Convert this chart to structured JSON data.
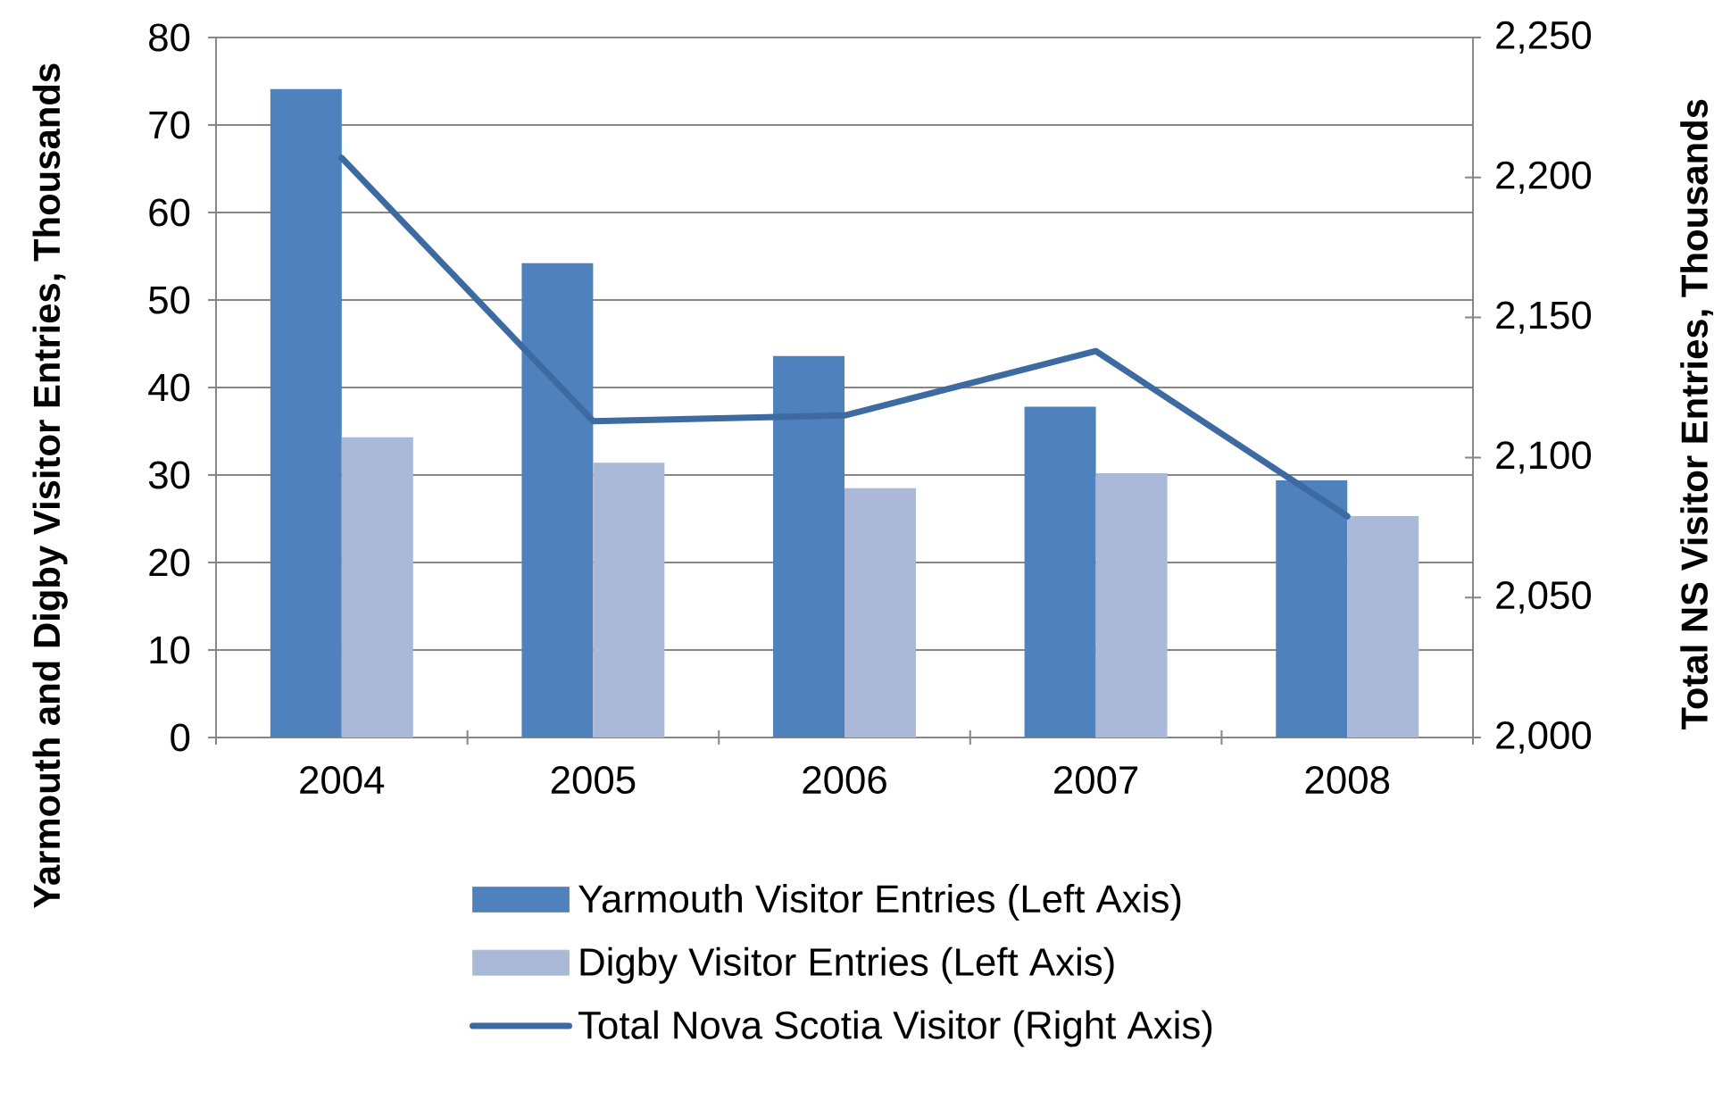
{
  "chart_data": {
    "type": "bar",
    "categories": [
      "2004",
      "2005",
      "2006",
      "2007",
      "2008"
    ],
    "series": [
      {
        "name": "Yarmouth Visitor Entries (Left Axis)",
        "color": "#4f81bd",
        "values": [
          74.1,
          54.2,
          43.6,
          37.8,
          29.4
        ]
      },
      {
        "name": "Digby Visitor Entries (Left Axis)",
        "color": "#aab9d7",
        "values": [
          34.3,
          31.4,
          28.5,
          30.2,
          25.3
        ]
      },
      {
        "name": "Total Nova Scotia Visitor (Right Axis)",
        "type": "line",
        "axis": "y2",
        "color": "#3d6aa1",
        "values": [
          2207,
          2113,
          2115,
          2138,
          2079
        ]
      }
    ],
    "ylabel": "Yarmouth and Digby Visitor Entries, Thousands",
    "y2label": "Total NS Visitor Entries, Thousands",
    "ylim": [
      0,
      80
    ],
    "yticks": [
      0,
      10,
      20,
      30,
      40,
      50,
      60,
      70,
      80
    ],
    "y2lim": [
      2000,
      2250
    ],
    "y2ticks": [
      {
        "value": 2000,
        "label": "2,000"
      },
      {
        "value": 2050,
        "label": "2,050"
      },
      {
        "value": 2100,
        "label": "2,100"
      },
      {
        "value": 2150,
        "label": "2,150"
      },
      {
        "value": 2200,
        "label": "2,200"
      },
      {
        "value": 2250,
        "label": "2,250"
      }
    ],
    "grid": "y",
    "legend": "bottom"
  }
}
